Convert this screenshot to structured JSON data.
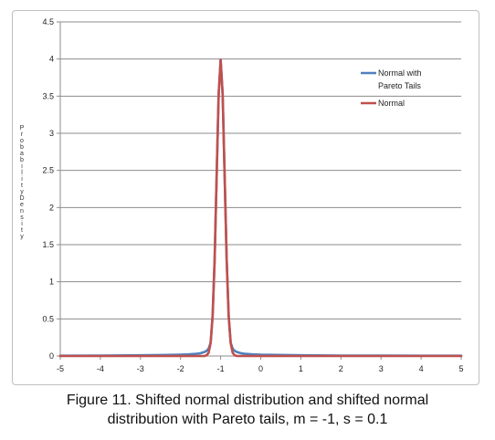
{
  "chart_data": {
    "type": "line",
    "title": "",
    "xlabel": "",
    "ylabel": "Probability Density",
    "xlim": [
      -5,
      5
    ],
    "ylim": [
      0,
      4.5
    ],
    "x_ticks": [
      "-5",
      "-4",
      "-3",
      "-2",
      "-1",
      "0",
      "1",
      "2",
      "3",
      "4",
      "5"
    ],
    "y_ticks": [
      "0",
      "0.5",
      "1",
      "1.5",
      "2",
      "2.5",
      "3",
      "3.5",
      "4",
      "4.5"
    ],
    "grid": "horizontal",
    "legend_position": "top-right",
    "series": [
      {
        "name": "Normal with Pareto Tails",
        "color": "#4f81bd",
        "x": [
          -5,
          -4,
          -3,
          -2.5,
          -2,
          -1.8,
          -1.6,
          -1.5,
          -1.4,
          -1.35,
          -1.3,
          -1.25,
          -1.2,
          -1.15,
          -1.1,
          -1.05,
          -1,
          -0.95,
          -0.9,
          -0.85,
          -0.8,
          -0.75,
          -0.7,
          -0.65,
          -0.6,
          -0.5,
          -0.4,
          -0.2,
          0,
          1,
          2,
          3,
          4,
          5
        ],
        "y": [
          0.004,
          0.006,
          0.01,
          0.013,
          0.018,
          0.022,
          0.03,
          0.038,
          0.055,
          0.07,
          0.1,
          0.18,
          0.54,
          1.3,
          2.42,
          3.53,
          3.99,
          3.53,
          2.42,
          1.3,
          0.54,
          0.18,
          0.1,
          0.07,
          0.055,
          0.038,
          0.03,
          0.022,
          0.018,
          0.01,
          0.006,
          0.005,
          0.004,
          0.004
        ]
      },
      {
        "name": "Normal",
        "color": "#c0504d",
        "x": [
          -5,
          -2,
          -1.5,
          -1.4,
          -1.35,
          -1.3,
          -1.25,
          -1.2,
          -1.15,
          -1.1,
          -1.05,
          -1,
          -0.95,
          -0.9,
          -0.85,
          -0.8,
          -0.75,
          -0.7,
          -0.65,
          -0.6,
          -0.5,
          0,
          5
        ],
        "y": [
          0,
          0,
          0,
          0.001,
          0.009,
          0.044,
          0.175,
          0.54,
          1.295,
          2.42,
          3.521,
          3.989,
          3.521,
          2.42,
          1.295,
          0.54,
          0.175,
          0.044,
          0.009,
          0.001,
          0,
          0,
          0
        ]
      }
    ]
  },
  "figure": {
    "caption_line1": "Figure 11. Shifted normal distribution and shifted normal",
    "caption_line2": "distribution with Pareto tails, m = -1, s = 0.1"
  }
}
